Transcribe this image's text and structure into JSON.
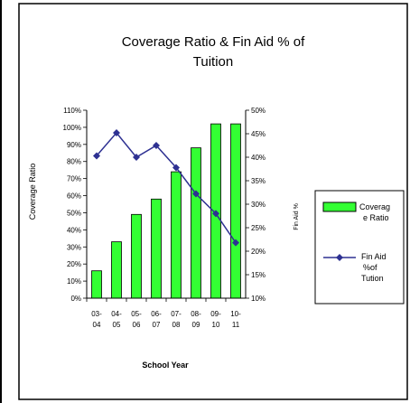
{
  "chart_data": {
    "type": "bar",
    "title_lines": [
      "Coverage Ratio & Fin Aid % of",
      "Tuition"
    ],
    "categories": [
      [
        "03-",
        "04"
      ],
      [
        "04-",
        "05"
      ],
      [
        "05-",
        "06"
      ],
      [
        "06-",
        "07"
      ],
      [
        "07-",
        "08"
      ],
      [
        "08-",
        "09"
      ],
      [
        "09-",
        "10"
      ],
      [
        "10-",
        "11"
      ]
    ],
    "xlabel": "School Year",
    "ylabel_left": "Coverage Ratio",
    "ylabel_right": "Fin Aid %",
    "ylim_left": [
      0,
      110
    ],
    "ylim_right": [
      10,
      50
    ],
    "left_ticks": [
      {
        "v": 0,
        "label": "0%"
      },
      {
        "v": 10,
        "label": "10%"
      },
      {
        "v": 20,
        "label": "20%"
      },
      {
        "v": 30,
        "label": "30%"
      },
      {
        "v": 40,
        "label": "40%"
      },
      {
        "v": 50,
        "label": "50%"
      },
      {
        "v": 60,
        "label": "60%"
      },
      {
        "v": 70,
        "label": "70%"
      },
      {
        "v": 80,
        "label": "80%"
      },
      {
        "v": 90,
        "label": "90%"
      },
      {
        "v": 100,
        "label": "100%"
      },
      {
        "v": 110,
        "label": "110%"
      }
    ],
    "right_ticks": [
      {
        "v": 10,
        "label": "10%"
      },
      {
        "v": 15,
        "label": "15%"
      },
      {
        "v": 20,
        "label": "20%"
      },
      {
        "v": 25,
        "label": "25%"
      },
      {
        "v": 30,
        "label": "30%"
      },
      {
        "v": 35,
        "label": "35%"
      },
      {
        "v": 40,
        "label": "40%"
      },
      {
        "v": 45,
        "label": "45%"
      },
      {
        "v": 50,
        "label": "50%"
      }
    ],
    "series": [
      {
        "kind": "bar",
        "axis": "left",
        "legend_lines": [
          "Coverag",
          "e Ratio"
        ],
        "color": "#33ff33",
        "values": [
          16,
          33,
          49,
          58,
          74,
          88,
          102,
          102
        ]
      },
      {
        "kind": "line",
        "axis": "right",
        "legend_lines": [
          "Fin Aid",
          "%of",
          "Tution"
        ],
        "color": "#2e3192",
        "values": [
          40.3,
          45.2,
          40.0,
          42.5,
          37.8,
          32.2,
          28.0,
          21.8
        ]
      }
    ],
    "legend_position": "right",
    "grid": false
  }
}
